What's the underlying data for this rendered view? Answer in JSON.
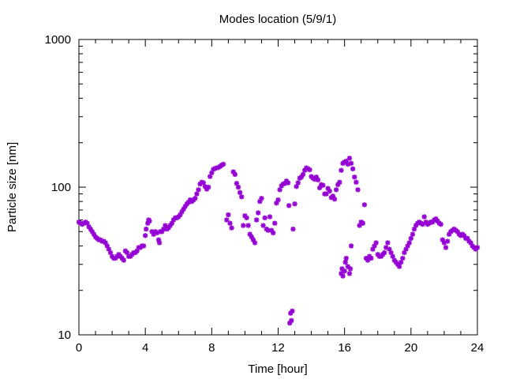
{
  "chart_data": {
    "type": "scatter",
    "title": "Modes location (5/9/1)",
    "xlabel": "Time [hour]",
    "ylabel": "Particle size [nm]",
    "xlim": [
      0,
      24
    ],
    "ylim": [
      10,
      1000
    ],
    "yscale": "log",
    "xticks": [
      0,
      4,
      8,
      12,
      16,
      20,
      24
    ],
    "xtick_labels": [
      "0",
      "4",
      "8",
      "12",
      "16",
      "20",
      "24"
    ],
    "yticks": [
      10,
      100,
      1000
    ],
    "ytick_labels": [
      "10",
      "100",
      "1000"
    ],
    "grid": false,
    "legend": "none",
    "marker_color": "#9400d3",
    "series": [
      {
        "points": [
          [
            0.0,
            58
          ],
          [
            0.1,
            57
          ],
          [
            0.2,
            56
          ],
          [
            0.3,
            57
          ],
          [
            0.4,
            58
          ],
          [
            0.5,
            57
          ],
          [
            0.6,
            54
          ],
          [
            0.7,
            52
          ],
          [
            0.8,
            50
          ],
          [
            0.9,
            48
          ],
          [
            1.0,
            46
          ],
          [
            1.1,
            45
          ],
          [
            1.2,
            44
          ],
          [
            1.3,
            44
          ],
          [
            1.4,
            43
          ],
          [
            1.5,
            43
          ],
          [
            1.6,
            42
          ],
          [
            1.7,
            40
          ],
          [
            1.8,
            38
          ],
          [
            1.9,
            36
          ],
          [
            2.0,
            34
          ],
          [
            2.1,
            33
          ],
          [
            2.2,
            33
          ],
          [
            2.3,
            34
          ],
          [
            2.4,
            35
          ],
          [
            2.5,
            34
          ],
          [
            2.6,
            33
          ],
          [
            2.7,
            32
          ],
          [
            2.8,
            37
          ],
          [
            2.9,
            36
          ],
          [
            3.0,
            34
          ],
          [
            3.1,
            34
          ],
          [
            3.2,
            35
          ],
          [
            3.3,
            36
          ],
          [
            3.4,
            36
          ],
          [
            3.5,
            37
          ],
          [
            3.6,
            39
          ],
          [
            3.7,
            39
          ],
          [
            3.8,
            40
          ],
          [
            3.9,
            40
          ],
          [
            4.0,
            47
          ],
          [
            4.05,
            52
          ],
          [
            4.15,
            57
          ],
          [
            4.2,
            60
          ],
          [
            4.25,
            59
          ],
          [
            4.4,
            50
          ],
          [
            4.5,
            48
          ],
          [
            4.6,
            50
          ],
          [
            4.7,
            49
          ],
          [
            4.8,
            44
          ],
          [
            4.85,
            42
          ],
          [
            4.9,
            50
          ],
          [
            5.0,
            50
          ],
          [
            5.1,
            52
          ],
          [
            5.2,
            55
          ],
          [
            5.3,
            52
          ],
          [
            5.4,
            53
          ],
          [
            5.5,
            55
          ],
          [
            5.6,
            57
          ],
          [
            5.7,
            60
          ],
          [
            5.8,
            62
          ],
          [
            5.9,
            62
          ],
          [
            6.0,
            63
          ],
          [
            6.1,
            65
          ],
          [
            6.2,
            68
          ],
          [
            6.3,
            71
          ],
          [
            6.4,
            74
          ],
          [
            6.5,
            77
          ],
          [
            6.6,
            79
          ],
          [
            6.7,
            82
          ],
          [
            6.8,
            80
          ],
          [
            6.9,
            82
          ],
          [
            7.0,
            84
          ],
          [
            7.1,
            90
          ],
          [
            7.2,
            96
          ],
          [
            7.3,
            105
          ],
          [
            7.4,
            108
          ],
          [
            7.5,
            107
          ],
          [
            7.6,
            101
          ],
          [
            7.7,
            97
          ],
          [
            7.8,
            100
          ],
          [
            7.9,
            118
          ],
          [
            8.0,
            125
          ],
          [
            8.1,
            132
          ],
          [
            8.2,
            134
          ],
          [
            8.3,
            135
          ],
          [
            8.4,
            136
          ],
          [
            8.5,
            138
          ],
          [
            8.6,
            141
          ],
          [
            8.7,
            143
          ],
          [
            8.9,
            60
          ],
          [
            9.0,
            65
          ],
          [
            9.1,
            57
          ],
          [
            9.2,
            53
          ],
          [
            9.3,
            127
          ],
          [
            9.4,
            122
          ],
          [
            9.5,
            106
          ],
          [
            9.6,
            100
          ],
          [
            9.7,
            92
          ],
          [
            9.8,
            86
          ],
          [
            9.9,
            55
          ],
          [
            10.0,
            64
          ],
          [
            10.1,
            62
          ],
          [
            10.2,
            55
          ],
          [
            10.3,
            48
          ],
          [
            10.4,
            46
          ],
          [
            10.5,
            44
          ],
          [
            10.6,
            42
          ],
          [
            10.7,
            60
          ],
          [
            10.8,
            67
          ],
          [
            10.9,
            80
          ],
          [
            11.0,
            84
          ],
          [
            11.1,
            55
          ],
          [
            11.2,
            62
          ],
          [
            11.3,
            52
          ],
          [
            11.4,
            51
          ],
          [
            11.5,
            63
          ],
          [
            11.6,
            51
          ],
          [
            11.7,
            49
          ],
          [
            11.8,
            57
          ],
          [
            11.9,
            78
          ],
          [
            12.0,
            82
          ],
          [
            12.1,
            96
          ],
          [
            12.2,
            102
          ],
          [
            12.3,
            105
          ],
          [
            12.4,
            106
          ],
          [
            12.5,
            110
          ],
          [
            12.6,
            107
          ],
          [
            12.65,
            75
          ],
          [
            12.7,
            12
          ],
          [
            12.75,
            14
          ],
          [
            12.8,
            12.5
          ],
          [
            12.85,
            14.5
          ],
          [
            12.9,
            52
          ],
          [
            13.0,
            77
          ],
          [
            13.1,
            101
          ],
          [
            13.2,
            107
          ],
          [
            13.3,
            115
          ],
          [
            13.4,
            117
          ],
          [
            13.5,
            122
          ],
          [
            13.6,
            130
          ],
          [
            13.7,
            135
          ],
          [
            13.8,
            133
          ],
          [
            13.9,
            131
          ],
          [
            14.0,
            118
          ],
          [
            14.1,
            115
          ],
          [
            14.2,
            113
          ],
          [
            14.3,
            117
          ],
          [
            14.4,
            112
          ],
          [
            14.5,
            99
          ],
          [
            14.6,
            104
          ],
          [
            14.7,
            103
          ],
          [
            14.8,
            90
          ],
          [
            14.9,
            90
          ],
          [
            15.0,
            98
          ],
          [
            15.1,
            94
          ],
          [
            15.2,
            85
          ],
          [
            15.3,
            87
          ],
          [
            15.4,
            83
          ],
          [
            15.5,
            96
          ],
          [
            15.6,
            104
          ],
          [
            15.7,
            108
          ],
          [
            15.8,
            26
          ],
          [
            15.85,
            28
          ],
          [
            15.9,
            25
          ],
          [
            16.0,
            27
          ],
          [
            16.05,
            31
          ],
          [
            16.1,
            33
          ],
          [
            16.2,
            29
          ],
          [
            16.3,
            26
          ],
          [
            16.35,
            28
          ],
          [
            16.4,
            40
          ],
          [
            15.8,
            130
          ],
          [
            15.9,
            145
          ],
          [
            16.0,
            148
          ],
          [
            16.1,
            150
          ],
          [
            16.2,
            143
          ],
          [
            16.3,
            157
          ],
          [
            16.4,
            145
          ],
          [
            16.5,
            133
          ],
          [
            16.6,
            117
          ],
          [
            16.7,
            108
          ],
          [
            16.8,
            96
          ],
          [
            16.9,
            55
          ],
          [
            17.0,
            58
          ],
          [
            17.1,
            57
          ],
          [
            17.2,
            76
          ],
          [
            17.3,
            33
          ],
          [
            17.4,
            32
          ],
          [
            17.5,
            34
          ],
          [
            17.6,
            33
          ],
          [
            17.7,
            38
          ],
          [
            17.8,
            40
          ],
          [
            17.9,
            42
          ],
          [
            18.0,
            35
          ],
          [
            18.1,
            34
          ],
          [
            18.2,
            34
          ],
          [
            18.3,
            35
          ],
          [
            18.4,
            36
          ],
          [
            18.5,
            39
          ],
          [
            18.6,
            42
          ],
          [
            18.7,
            38
          ],
          [
            18.8,
            36
          ],
          [
            18.9,
            34
          ],
          [
            19.0,
            32
          ],
          [
            19.1,
            31
          ],
          [
            19.2,
            30
          ],
          [
            19.3,
            29
          ],
          [
            19.4,
            31
          ],
          [
            19.5,
            33
          ],
          [
            19.6,
            36
          ],
          [
            19.7,
            38
          ],
          [
            19.8,
            40
          ],
          [
            19.9,
            42
          ],
          [
            20.0,
            45
          ],
          [
            20.1,
            48
          ],
          [
            20.2,
            52
          ],
          [
            20.3,
            55
          ],
          [
            20.4,
            57
          ],
          [
            20.5,
            58
          ],
          [
            20.6,
            57
          ],
          [
            20.7,
            56
          ],
          [
            20.8,
            63
          ],
          [
            20.9,
            58
          ],
          [
            21.0,
            56
          ],
          [
            21.1,
            57
          ],
          [
            21.2,
            58
          ],
          [
            21.3,
            58
          ],
          [
            21.4,
            60
          ],
          [
            21.5,
            61
          ],
          [
            21.6,
            59
          ],
          [
            21.7,
            57
          ],
          [
            21.8,
            56
          ],
          [
            21.9,
            44
          ],
          [
            22.0,
            42
          ],
          [
            22.1,
            39
          ],
          [
            22.2,
            43
          ],
          [
            22.3,
            48
          ],
          [
            22.4,
            50
          ],
          [
            22.5,
            51
          ],
          [
            22.6,
            52
          ],
          [
            22.7,
            51
          ],
          [
            22.8,
            50
          ],
          [
            22.9,
            48
          ],
          [
            23.0,
            47
          ],
          [
            23.1,
            48
          ],
          [
            23.2,
            47
          ],
          [
            23.3,
            45
          ],
          [
            23.4,
            45
          ],
          [
            23.5,
            43
          ],
          [
            23.6,
            42
          ],
          [
            23.7,
            40
          ],
          [
            23.8,
            39
          ],
          [
            23.9,
            38
          ],
          [
            24.0,
            39
          ]
        ]
      }
    ]
  }
}
